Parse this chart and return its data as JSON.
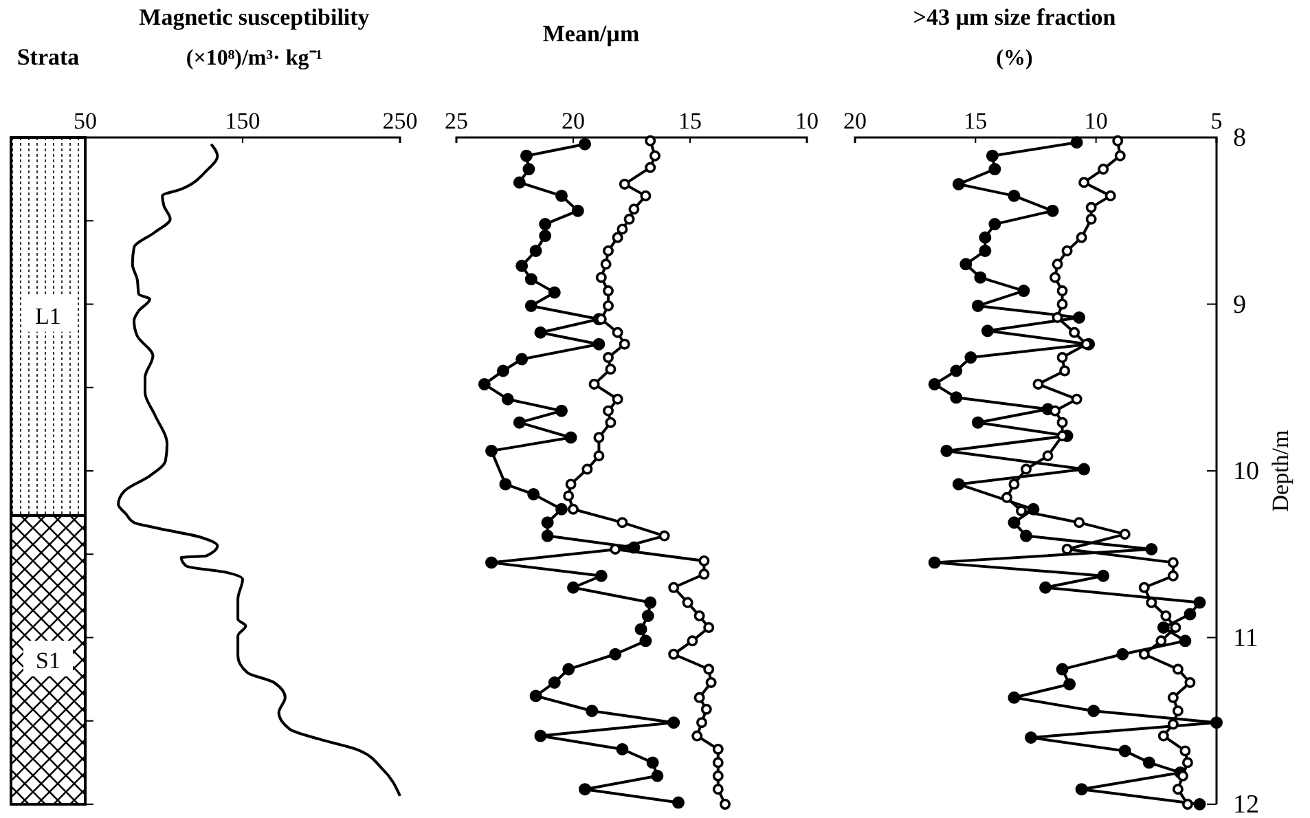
{
  "chart_data": [
    {
      "type": "other",
      "title": "Strata",
      "annotations": [
        "L1",
        "S1"
      ]
    },
    {
      "type": "line",
      "title": "Magnetic susceptibility",
      "subtitle": "(×10⁸)/m³· kg⁻¹",
      "xlim": [
        50,
        250
      ],
      "xticks": [
        50,
        150,
        250
      ],
      "ylim": [
        12,
        8
      ],
      "yticks": [
        {
          "value": 8.5,
          "label": null
        },
        {
          "value": 9,
          "label": null
        },
        {
          "value": 9.5,
          "label": null
        },
        {
          "value": 10,
          "label": null
        },
        {
          "value": 10.5,
          "label": null
        },
        {
          "value": 11,
          "label": null
        },
        {
          "value": 11.5,
          "label": null
        },
        {
          "value": 12,
          "label": null
        }
      ],
      "tick_labels": "x",
      "marker": "none",
      "line_style": "solid",
      "series": [
        {
          "color": "#000000",
          "x": [
            130,
            134,
            127,
            111,
            99,
            100,
            104,
            94,
            81,
            80,
            83,
            84,
            91,
            84,
            81,
            83,
            93,
            88,
            88,
            94,
            102,
            101,
            91,
            75,
            71,
            76,
            81,
            94,
            124,
            134,
            127,
            111,
            114,
            140,
            150,
            147,
            147,
            152,
            147,
            147,
            153,
            170,
            177,
            173,
            180,
            199,
            222,
            239,
            250
          ],
          "values": [
            8.04,
            8.11,
            8.2,
            8.31,
            8.35,
            8.41,
            8.49,
            8.57,
            8.66,
            8.76,
            8.85,
            8.94,
            8.97,
            9.04,
            9.1,
            9.19,
            9.31,
            9.44,
            9.53,
            9.66,
            9.84,
            9.94,
            10.03,
            10.12,
            10.2,
            10.26,
            10.31,
            10.34,
            10.4,
            10.45,
            10.51,
            10.52,
            10.57,
            10.61,
            10.65,
            10.77,
            10.89,
            10.93,
            10.99,
            11.11,
            11.21,
            11.27,
            11.36,
            11.45,
            11.55,
            11.61,
            11.67,
            11.79,
            11.95
          ]
        }
      ]
    },
    {
      "type": "line",
      "title": "Mean/µm",
      "xlim": [
        25,
        10
      ],
      "xticks": [
        25,
        20,
        15,
        10
      ],
      "ylim": [
        12,
        8
      ],
      "tick_labels": "x",
      "marker": "circle",
      "line_style": "solid",
      "series": [
        {
          "color": "#000000",
          "x": [
            19.5,
            22.0,
            21.9,
            22.3,
            20.5,
            19.8,
            21.2,
            21.2,
            21.6,
            22.2,
            21.8,
            20.8,
            21.8,
            18.9,
            21.4,
            18.9,
            22.2,
            23.0,
            23.8,
            22.8,
            20.5,
            22.3,
            20.1,
            23.5,
            22.9,
            21.7,
            20.5,
            21.1,
            21.1,
            17.4,
            23.5,
            18.8,
            20.0,
            16.7,
            16.8,
            17.1,
            16.9,
            18.2,
            20.2,
            20.8,
            21.6,
            19.2,
            15.7,
            21.4,
            17.9,
            16.6,
            16.4,
            19.5,
            15.5
          ],
          "values": [
            8.04,
            8.11,
            8.19,
            8.27,
            8.35,
            8.44,
            8.52,
            8.59,
            8.68,
            8.77,
            8.85,
            8.93,
            9.01,
            9.09,
            9.17,
            9.24,
            9.33,
            9.4,
            9.48,
            9.57,
            9.64,
            9.71,
            9.8,
            9.88,
            10.08,
            10.14,
            10.23,
            10.31,
            10.39,
            10.46,
            10.55,
            10.63,
            10.7,
            10.79,
            10.87,
            10.95,
            11.02,
            11.1,
            11.19,
            11.27,
            11.35,
            11.44,
            11.51,
            11.59,
            11.67,
            11.75,
            11.83,
            11.91,
            11.99
          ]
        },
        {
          "color": "#000000",
          "x": [
            16.7,
            16.5,
            16.7,
            17.8,
            16.9,
            17.4,
            17.6,
            17.9,
            18.1,
            18.5,
            18.6,
            18.8,
            18.5,
            18.5,
            18.8,
            18.1,
            17.8,
            18.5,
            18.4,
            19.1,
            18.1,
            18.5,
            18.4,
            18.9,
            18.9,
            19.4,
            20.1,
            20.2,
            20.0,
            17.9,
            16.1,
            18.2,
            14.4,
            14.4,
            15.7,
            15.1,
            14.6,
            14.2,
            14.9,
            15.7,
            14.2,
            14.1,
            14.6,
            14.3,
            14.5,
            14.7,
            13.8,
            13.8,
            13.8,
            13.8,
            13.5
          ],
          "values": [
            8.02,
            8.11,
            8.18,
            8.28,
            8.35,
            8.43,
            8.49,
            8.55,
            8.6,
            8.68,
            8.76,
            8.84,
            8.92,
            9.01,
            9.09,
            9.17,
            9.24,
            9.32,
            9.39,
            9.48,
            9.57,
            9.64,
            9.71,
            9.8,
            9.91,
            9.99,
            10.08,
            10.15,
            10.23,
            10.31,
            10.39,
            10.47,
            10.54,
            10.62,
            10.7,
            10.79,
            10.87,
            10.94,
            11.02,
            11.1,
            11.19,
            11.27,
            11.36,
            11.43,
            11.51,
            11.59,
            11.67,
            11.75,
            11.83,
            11.91,
            12.0
          ]
        }
      ]
    },
    {
      "type": "line",
      "title": ">43 µm size fraction",
      "subtitle": "(%)",
      "ylabel": "Depth/m",
      "xlim": [
        20,
        5
      ],
      "xticks": [
        20,
        15,
        10,
        5
      ],
      "ylim": [
        12,
        8
      ],
      "yticks": [
        8,
        9,
        10,
        11,
        12
      ],
      "marker": "circle",
      "line_style": "solid",
      "series": [
        {
          "color": "#000000",
          "x": [
            10.8,
            14.3,
            14.2,
            15.7,
            13.4,
            11.8,
            14.2,
            14.6,
            14.6,
            15.4,
            14.8,
            13.0,
            14.9,
            10.7,
            14.5,
            10.3,
            15.2,
            15.8,
            16.7,
            15.8,
            12.0,
            14.9,
            11.2,
            16.2,
            10.5,
            15.7,
            12.6,
            13.4,
            12.9,
            7.7,
            16.7,
            9.7,
            12.1,
            5.7,
            6.1,
            7.2,
            6.3,
            8.9,
            11.4,
            11.1,
            13.4,
            10.1,
            5.0,
            12.7,
            8.8,
            7.8,
            6.5,
            10.6,
            5.7
          ],
          "values": [
            8.03,
            8.11,
            8.19,
            8.28,
            8.35,
            8.44,
            8.52,
            8.6,
            8.68,
            8.76,
            8.84,
            8.92,
            9.01,
            9.08,
            9.16,
            9.24,
            9.32,
            9.4,
            9.48,
            9.56,
            9.63,
            9.71,
            9.79,
            9.88,
            9.99,
            10.08,
            10.23,
            10.31,
            10.39,
            10.47,
            10.55,
            10.63,
            10.7,
            10.79,
            10.86,
            10.94,
            11.02,
            11.1,
            11.19,
            11.28,
            11.36,
            11.44,
            11.51,
            11.6,
            11.68,
            11.75,
            11.81,
            11.91,
            12.0
          ]
        },
        {
          "color": "#000000",
          "x": [
            9.1,
            9.0,
            9.7,
            10.5,
            9.4,
            10.2,
            10.2,
            10.6,
            11.2,
            11.6,
            11.7,
            11.4,
            11.4,
            11.6,
            10.9,
            10.4,
            11.4,
            11.3,
            12.4,
            10.8,
            11.7,
            11.4,
            11.4,
            12.0,
            12.9,
            13.4,
            13.7,
            13.1,
            10.7,
            8.8,
            11.2,
            6.8,
            6.8,
            8.0,
            7.7,
            7.1,
            6.7,
            7.3,
            8.0,
            6.6,
            6.1,
            6.8,
            6.6,
            6.8,
            7.2,
            6.3,
            6.2,
            6.4,
            6.6,
            6.2
          ],
          "values": [
            8.02,
            8.11,
            8.19,
            8.27,
            8.35,
            8.42,
            8.49,
            8.6,
            8.68,
            8.76,
            8.84,
            8.92,
            9.0,
            9.08,
            9.17,
            9.24,
            9.32,
            9.4,
            9.48,
            9.57,
            9.64,
            9.71,
            9.79,
            9.91,
            9.99,
            10.08,
            10.16,
            10.24,
            10.31,
            10.38,
            10.47,
            10.55,
            10.63,
            10.7,
            10.79,
            10.87,
            10.94,
            11.02,
            11.1,
            11.19,
            11.27,
            11.36,
            11.44,
            11.52,
            11.59,
            11.68,
            11.75,
            11.83,
            11.91,
            12.0
          ]
        }
      ]
    }
  ]
}
